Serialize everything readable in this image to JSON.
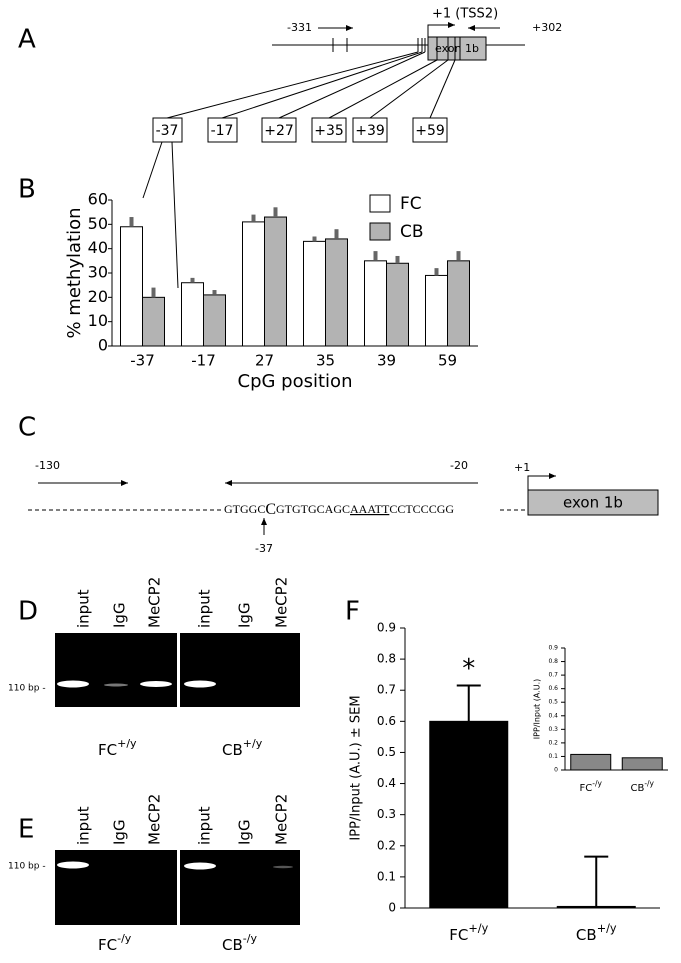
{
  "panels": {
    "A": {
      "label": "A",
      "positions": [
        "-331",
        "+1 (TSS2)",
        "+302"
      ],
      "exon": "exon 1b",
      "cpg_boxes": [
        "-37",
        "-17",
        "+27",
        "+35",
        "+39",
        "+59"
      ]
    },
    "B": {
      "label": "B"
    },
    "C": {
      "label": "C",
      "positions": [
        "-130",
        "-20",
        "+1"
      ],
      "exon": "exon 1b",
      "sequence": [
        "GTGGC",
        "C",
        "GTGTGCAGC",
        "AAATT",
        "CCTCCCGG"
      ],
      "marker": "-37"
    },
    "D": {
      "label": "D",
      "lanes": [
        "input",
        "IgG",
        "MeCP2",
        "input",
        "IgG",
        "MeCP2"
      ],
      "size": "110 bp -",
      "groups": [
        {
          "name": "FC",
          "sup": "+/y"
        },
        {
          "name": "CB",
          "sup": "+/y"
        }
      ]
    },
    "E": {
      "label": "E",
      "lanes": [
        "input",
        "IgG",
        "MeCP2",
        "input",
        "IgG",
        "MeCP2"
      ],
      "size": "110 bp -",
      "groups": [
        {
          "name": "FC",
          "sup": "-/y"
        },
        {
          "name": "CB",
          "sup": "-/y"
        }
      ]
    },
    "F": {
      "label": "F"
    }
  },
  "chart_data": [
    {
      "type": "bar",
      "ylabel": "% methylation",
      "xlabel": "CpG position",
      "categories": [
        "-37",
        "-17",
        "27",
        "35",
        "39",
        "59"
      ],
      "series": [
        {
          "name": "FC",
          "color": "#ffffff",
          "values": [
            49,
            26,
            51,
            43,
            35,
            29
          ],
          "errors": [
            4,
            2,
            3,
            2,
            4,
            3
          ]
        },
        {
          "name": "CB",
          "color": "#b3b3b3",
          "values": [
            20,
            21,
            53,
            44,
            34,
            35
          ],
          "errors": [
            4,
            2,
            4,
            4,
            3,
            4
          ]
        }
      ],
      "ylim": [
        0,
        60
      ],
      "yticks": [
        0,
        10,
        20,
        30,
        40,
        50,
        60
      ],
      "legend": "upper right"
    },
    {
      "type": "bar",
      "ylabel": "IPP/Input (A.U.) ± SEM",
      "categories": [
        "FC",
        "CB"
      ],
      "category_superscripts": [
        "+/y",
        "+/y"
      ],
      "values": [
        0.6,
        0.005
      ],
      "errors": [
        0.115,
        0.16
      ],
      "color": "#000000",
      "annotation": "*",
      "ylim": [
        0,
        0.9
      ],
      "yticks": [
        0,
        0.1,
        0.2,
        0.3,
        0.4,
        0.5,
        0.6,
        0.7,
        0.8,
        0.9
      ]
    },
    {
      "type": "bar",
      "ylabel": "IPP/Input (A.U.)",
      "categories": [
        "FC",
        "CB"
      ],
      "category_superscripts": [
        "-/y",
        "-/y"
      ],
      "values": [
        0.115,
        0.09
      ],
      "color": "#888888",
      "ylim": [
        0,
        0.9
      ],
      "yticks": [
        0,
        0.1,
        0.2,
        0.3,
        0.4,
        0.5,
        0.6,
        0.7,
        0.8,
        0.9
      ]
    }
  ]
}
